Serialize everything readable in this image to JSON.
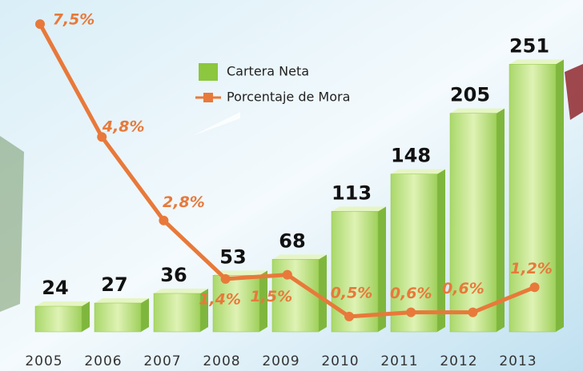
{
  "chart_data": {
    "type": "bar",
    "categories": [
      "2005",
      "2006",
      "2007",
      "2008",
      "2009",
      "2010",
      "2011",
      "2012",
      "2013"
    ],
    "series": [
      {
        "name": "Cartera Neta",
        "type": "bar",
        "color": "#8dc63f",
        "values": [
          24,
          27,
          36,
          53,
          68,
          113,
          148,
          205,
          251
        ]
      },
      {
        "name": "Porcentaje de Mora",
        "type": "line",
        "axis": "y2",
        "color": "#e8793a",
        "values": [
          7.5,
          4.8,
          2.8,
          1.4,
          1.5,
          0.5,
          0.6,
          0.6,
          1.2
        ],
        "value_labels": [
          "7,5%",
          "4,8%",
          "2,8%",
          "1,4%",
          "1,5%",
          "0,5%",
          "0,6%",
          "0,6%",
          "1,2%"
        ]
      }
    ],
    "ylim": [
      0,
      300
    ],
    "y2lim": [
      0,
      8
    ]
  }
}
